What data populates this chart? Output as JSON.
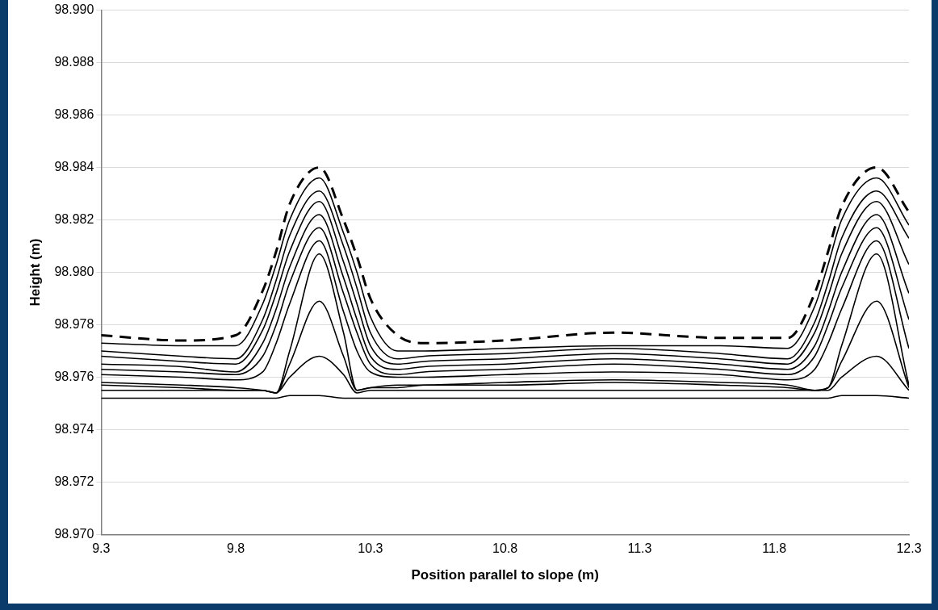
{
  "chart_data": {
    "type": "line",
    "xlabel": "Position parallel to slope (m)",
    "ylabel": "Height (m)",
    "x": [
      9.3,
      9.6,
      9.8,
      9.9,
      9.95,
      10.0,
      10.11,
      10.2,
      10.25,
      10.3,
      10.4,
      10.5,
      10.8,
      11.2,
      11.6,
      11.85,
      11.95,
      12.0,
      12.05,
      12.18,
      12.3
    ],
    "series": [
      {
        "color": "#000000",
        "line_style": "dashed",
        "values": [
          98.9776,
          98.9774,
          98.9776,
          98.9793,
          98.9808,
          98.9826,
          98.984,
          98.982,
          98.9806,
          98.979,
          98.9776,
          98.9773,
          98.9774,
          98.9777,
          98.9775,
          98.9775,
          98.9792,
          98.9808,
          98.9825,
          98.984,
          98.9823
        ]
      },
      {
        "color": "#000000",
        "line_style": "solid",
        "values": [
          98.9773,
          98.9772,
          98.9772,
          98.9788,
          98.9803,
          98.982,
          98.9836,
          98.9815,
          98.98,
          98.9783,
          98.977,
          98.977,
          98.9771,
          98.9772,
          98.9772,
          98.9771,
          98.9787,
          98.9803,
          98.982,
          98.9836,
          98.9818
        ]
      },
      {
        "color": "#000000",
        "line_style": "solid",
        "values": [
          98.977,
          98.9768,
          98.9767,
          98.9782,
          98.9797,
          98.9814,
          98.9831,
          98.981,
          98.9794,
          98.9777,
          98.9767,
          98.9768,
          98.9769,
          98.9771,
          98.9769,
          98.9767,
          98.9781,
          98.9796,
          98.9813,
          98.9831,
          98.9813
        ]
      },
      {
        "color": "#000000",
        "line_style": "solid",
        "values": [
          98.9768,
          98.9766,
          98.9765,
          98.9778,
          98.9792,
          98.9808,
          98.9827,
          98.9804,
          98.9788,
          98.9772,
          98.9765,
          98.9766,
          98.9767,
          98.9769,
          98.9767,
          98.9765,
          98.9777,
          98.9791,
          98.9807,
          98.9827,
          98.9803
        ]
      },
      {
        "color": "#000000",
        "line_style": "solid",
        "values": [
          98.9765,
          98.9764,
          98.9762,
          98.9773,
          98.9786,
          98.9802,
          98.9822,
          98.9798,
          98.9782,
          98.9768,
          98.9763,
          98.9764,
          98.9765,
          98.9767,
          98.9765,
          98.9763,
          98.9772,
          98.9785,
          98.98,
          98.9822,
          98.9792
        ]
      },
      {
        "color": "#000000",
        "line_style": "solid",
        "values": [
          98.9763,
          98.9762,
          98.9761,
          98.9768,
          98.978,
          98.9796,
          98.9817,
          98.9792,
          98.9777,
          98.9765,
          98.9761,
          98.9762,
          98.9763,
          98.9765,
          98.9763,
          98.9761,
          98.9768,
          98.978,
          98.9794,
          98.9817,
          98.9782
        ]
      },
      {
        "color": "#000000",
        "line_style": "solid",
        "values": [
          98.9761,
          98.976,
          98.9759,
          98.9762,
          98.9773,
          98.9788,
          98.9812,
          98.9785,
          98.977,
          98.9762,
          98.976,
          98.976,
          98.9761,
          98.9762,
          98.9761,
          98.9759,
          98.9763,
          98.9773,
          98.9786,
          98.9812,
          98.9771
        ]
      },
      {
        "color": "#000000",
        "line_style": "solid",
        "values": [
          98.9758,
          98.9757,
          98.9756,
          98.9755,
          98.9754,
          98.977,
          98.9807,
          98.9777,
          98.9755,
          98.9756,
          98.9757,
          98.9757,
          98.9758,
          98.9759,
          98.9758,
          98.9757,
          98.9755,
          98.9756,
          98.9772,
          98.9807,
          98.9757
        ]
      },
      {
        "color": "#000000",
        "line_style": "solid",
        "values": [
          98.9757,
          98.9756,
          98.9755,
          98.9755,
          98.9754,
          98.9765,
          98.9789,
          98.9768,
          98.9755,
          98.9756,
          98.9756,
          98.9757,
          98.9757,
          98.9758,
          98.9757,
          98.9756,
          98.9755,
          98.9756,
          98.9766,
          98.9789,
          98.9756
        ]
      },
      {
        "color": "#000000",
        "line_style": "solid",
        "values": [
          98.9755,
          98.9755,
          98.9755,
          98.9755,
          98.9754,
          98.976,
          98.9768,
          98.9761,
          98.9754,
          98.9755,
          98.9755,
          98.9755,
          98.9755,
          98.9755,
          98.9755,
          98.9755,
          98.9755,
          98.9755,
          98.976,
          98.9768,
          98.9755
        ]
      },
      {
        "color": "#000000",
        "line_style": "solid",
        "values": [
          98.9752,
          98.9752,
          98.9752,
          98.9752,
          98.9752,
          98.9753,
          98.9753,
          98.9752,
          98.9752,
          98.9752,
          98.9752,
          98.9752,
          98.9752,
          98.9752,
          98.9752,
          98.9752,
          98.9752,
          98.9752,
          98.9753,
          98.9753,
          98.9752
        ]
      }
    ],
    "xlim": [
      9.3,
      12.3
    ],
    "xticks": [
      9.3,
      9.8,
      10.3,
      10.8,
      11.3,
      11.8,
      12.3
    ],
    "ylim": [
      98.97,
      98.99
    ],
    "yticks": [
      {
        "value": 98.97,
        "label": "98.970"
      },
      {
        "value": 98.972,
        "label": "98.972"
      },
      {
        "value": 98.974,
        "label": "98.974"
      },
      {
        "value": 98.976,
        "label": "98.976"
      },
      {
        "value": 98.978,
        "label": "98.978"
      },
      {
        "value": 98.98,
        "label": "98.980"
      },
      {
        "value": 98.982,
        "label": "98.982"
      },
      {
        "value": 98.984,
        "label": "98.984"
      },
      {
        "value": 98.986,
        "label": "98.986"
      },
      {
        "value": 98.988,
        "label": "98.988"
      },
      {
        "value": 98.99,
        "label": "98.990"
      }
    ],
    "grid": "y",
    "legend": false,
    "marker": "none"
  }
}
